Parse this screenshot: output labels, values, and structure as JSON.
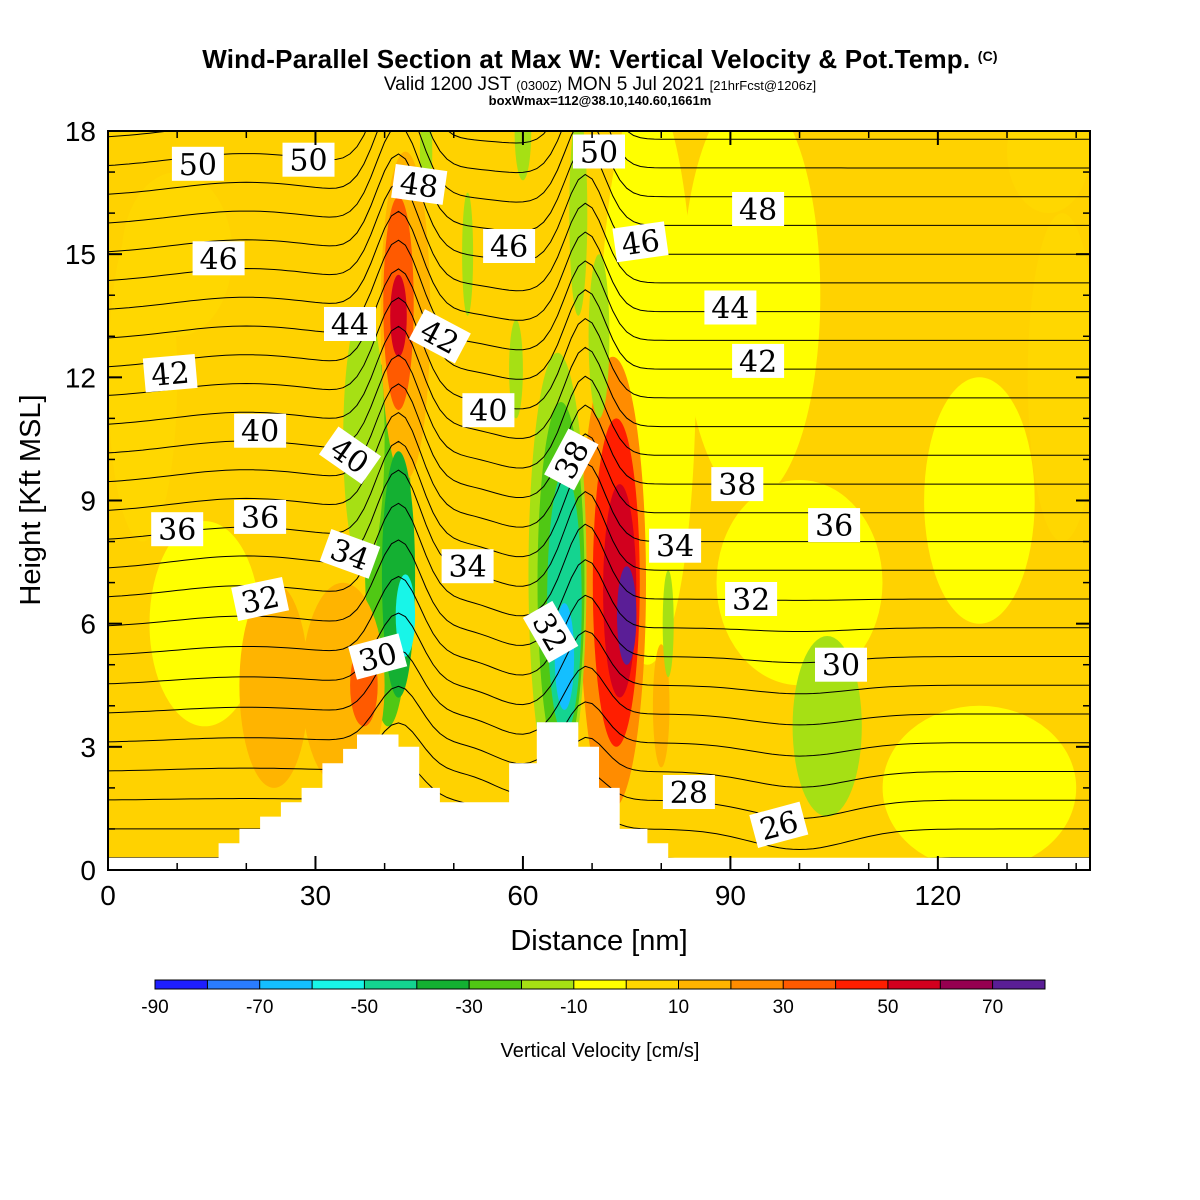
{
  "title": {
    "main": "Wind-Parallel Section at Max W: Vertical Velocity & Pot.Temp.",
    "copyright": "(C)",
    "valid_prefix": "Valid 1200 JST",
    "valid_utc": "(0300Z)",
    "valid_date": "MON 5 Jul 2021",
    "valid_fcst": "[21hrFcst@1206z]",
    "box_info": "boxWmax=112@38.10,140.60,1661m"
  },
  "chart_data": {
    "type": "heatmap",
    "xlabel": "Distance [nm]",
    "ylabel": "Height [Kft MSL]",
    "xlim": [
      0,
      142
    ],
    "ylim": [
      0,
      18
    ],
    "x_ticks": [
      0,
      30,
      60,
      90,
      120
    ],
    "y_ticks": [
      0,
      3,
      6,
      9,
      12,
      15,
      18
    ],
    "colorbar": {
      "label": "Vertical Velocity [cm/s]",
      "tick_labels": [
        "-90",
        "-70",
        "-50",
        "-30",
        "-10",
        "10",
        "30",
        "50",
        "70"
      ],
      "levels": [
        -90,
        -80,
        -70,
        -60,
        -50,
        -40,
        -30,
        -20,
        -10,
        0,
        10,
        20,
        30,
        40,
        50,
        60,
        70,
        80
      ],
      "colors": [
        "#1e1eff",
        "#2a7cff",
        "#14bfff",
        "#18f5e8",
        "#14d490",
        "#14b032",
        "#50c814",
        "#a6e014",
        "#ffff00",
        "#ffd700",
        "#ffb400",
        "#ff8c00",
        "#ff5a00",
        "#ff1e00",
        "#d2001e",
        "#960050",
        "#5a1e96"
      ]
    },
    "background_color": "#ffd200",
    "terrain_profile": [
      [
        0,
        0.3
      ],
      [
        16,
        0.3
      ],
      [
        16,
        0.65
      ],
      [
        19,
        0.65
      ],
      [
        19,
        1.0
      ],
      [
        22,
        1.0
      ],
      [
        22,
        1.3
      ],
      [
        25,
        1.3
      ],
      [
        25,
        1.65
      ],
      [
        28,
        1.65
      ],
      [
        28,
        2.0
      ],
      [
        31,
        2.0
      ],
      [
        31,
        2.6
      ],
      [
        34,
        2.6
      ],
      [
        34,
        2.95
      ],
      [
        36,
        2.95
      ],
      [
        36,
        3.3
      ],
      [
        42,
        3.3
      ],
      [
        42,
        3.0
      ],
      [
        45,
        3.0
      ],
      [
        45,
        2.0
      ],
      [
        48,
        2.0
      ],
      [
        48,
        1.65
      ],
      [
        58,
        1.65
      ],
      [
        58,
        2.6
      ],
      [
        62,
        2.6
      ],
      [
        62,
        3.6
      ],
      [
        68,
        3.6
      ],
      [
        68,
        3.0
      ],
      [
        71,
        3.0
      ],
      [
        71,
        2.0
      ],
      [
        74,
        2.0
      ],
      [
        74,
        1.0
      ],
      [
        78,
        1.0
      ],
      [
        78,
        0.65
      ],
      [
        81,
        0.65
      ],
      [
        81,
        0.3
      ],
      [
        142,
        0.3
      ]
    ],
    "velocity_features": [
      {
        "x": 75,
        "y": 6.2,
        "value": 78,
        "rx": 1.4,
        "ry": 1.2
      },
      {
        "x": 74,
        "y": 6.8,
        "value": 58,
        "rx": 2.4,
        "ry": 2.6
      },
      {
        "x": 73.5,
        "y": 7.0,
        "value": 42,
        "rx": 3.4,
        "ry": 4.0
      },
      {
        "x": 73,
        "y": 7.0,
        "value": 25,
        "rx": 4.8,
        "ry": 5.5
      },
      {
        "x": 66,
        "y": 5.2,
        "value": -64,
        "rx": 1.4,
        "ry": 1.3
      },
      {
        "x": 66,
        "y": 6.5,
        "value": -46,
        "rx": 2.5,
        "ry": 3.2
      },
      {
        "x": 65.5,
        "y": 7.0,
        "value": -30,
        "rx": 3.4,
        "ry": 4.4
      },
      {
        "x": 65,
        "y": 7.2,
        "value": -15,
        "rx": 4.2,
        "ry": 5.4
      },
      {
        "x": 43,
        "y": 6.2,
        "value": -56,
        "rx": 1.4,
        "ry": 1.0
      },
      {
        "x": 42,
        "y": 7.2,
        "value": -38,
        "rx": 2.4,
        "ry": 3.0
      },
      {
        "x": 40.5,
        "y": 8.0,
        "value": -24,
        "rx": 3.4,
        "ry": 4.5
      },
      {
        "x": 37,
        "y": 10.5,
        "value": -15,
        "rx": 3.0,
        "ry": 3.2
      },
      {
        "x": 42,
        "y": 13.5,
        "value": 52,
        "rx": 1.2,
        "ry": 1.0
      },
      {
        "x": 42,
        "y": 13.8,
        "value": 32,
        "rx": 2.2,
        "ry": 2.6
      },
      {
        "x": 43,
        "y": 13.5,
        "value": 14,
        "rx": 3.6,
        "ry": 4.0
      },
      {
        "x": 37,
        "y": 4.5,
        "value": 38,
        "rx": 2.0,
        "ry": 1.0
      },
      {
        "x": 34,
        "y": 4.5,
        "value": 15,
        "rx": 6.0,
        "ry": 2.5
      },
      {
        "x": 24,
        "y": 4.5,
        "value": 12,
        "rx": 5.0,
        "ry": 2.5
      },
      {
        "x": 104,
        "y": 3.5,
        "value": -16,
        "rx": 5.0,
        "ry": 2.2
      },
      {
        "x": 68,
        "y": 16.0,
        "value": -20,
        "rx": 1.3,
        "ry": 2.5
      },
      {
        "x": 71,
        "y": 13.0,
        "value": -15,
        "rx": 1.5,
        "ry": 2.0
      },
      {
        "x": 59,
        "y": 12.2,
        "value": -12,
        "rx": 1.0,
        "ry": 1.2
      },
      {
        "x": 52,
        "y": 15.0,
        "value": -15,
        "rx": 0.8,
        "ry": 1.5
      },
      {
        "x": 46,
        "y": 17.5,
        "value": -15,
        "rx": 0.9,
        "ry": 1.0
      },
      {
        "x": 60,
        "y": 18.0,
        "value": -15,
        "rx": 1.2,
        "ry": 1.2
      },
      {
        "x": 81,
        "y": 6.0,
        "value": -12,
        "rx": 0.8,
        "ry": 1.3
      },
      {
        "x": 80,
        "y": 4.0,
        "value": 15,
        "rx": 1.2,
        "ry": 1.5
      },
      {
        "x": 5,
        "y": 12.0,
        "value": 0,
        "rx": 5.0,
        "ry": 4.0
      },
      {
        "x": 93,
        "y": 14.0,
        "value": -2,
        "rx": 10.0,
        "ry": 5.0
      },
      {
        "x": 100,
        "y": 7.0,
        "value": -2,
        "rx": 12.0,
        "ry": 2.5
      },
      {
        "x": 78,
        "y": 12.0,
        "value": -3,
        "rx": 7.0,
        "ry": 7.0
      },
      {
        "x": 126,
        "y": 9.0,
        "value": -2,
        "rx": 8.0,
        "ry": 3.0
      },
      {
        "x": 126,
        "y": 2.0,
        "value": -2,
        "rx": 14.0,
        "ry": 2.0
      },
      {
        "x": 14,
        "y": 6.0,
        "value": -2,
        "rx": 8.0,
        "ry": 2.5
      },
      {
        "x": 10,
        "y": 15.0,
        "value": 3,
        "rx": 8.0,
        "ry": 2.0
      },
      {
        "x": 138,
        "y": 12.0,
        "value": 3,
        "rx": 5.0,
        "ry": 4.0
      },
      {
        "x": 136,
        "y": 17.5,
        "value": 3,
        "rx": 6.0,
        "ry": 1.5
      }
    ],
    "theta_contours": {
      "interval": 1,
      "labels": [
        {
          "text": "50",
          "x": 13,
          "y": 17.2,
          "rot": 0
        },
        {
          "text": "50",
          "x": 29,
          "y": 17.3,
          "rot": 0
        },
        {
          "text": "48",
          "x": 45,
          "y": 16.7,
          "rot": 8
        },
        {
          "text": "50",
          "x": 71,
          "y": 17.5,
          "rot": 0
        },
        {
          "text": "48",
          "x": 94,
          "y": 16.1,
          "rot": 0
        },
        {
          "text": "46",
          "x": 16,
          "y": 14.9,
          "rot": 0
        },
        {
          "text": "46",
          "x": 58,
          "y": 15.2,
          "rot": 0
        },
        {
          "text": "46",
          "x": 77,
          "y": 15.3,
          "rot": -8
        },
        {
          "text": "44",
          "x": 90,
          "y": 13.7,
          "rot": 0
        },
        {
          "text": "44",
          "x": 35,
          "y": 13.3,
          "rot": 0
        },
        {
          "text": "42",
          "x": 48,
          "y": 13.0,
          "rot": 28
        },
        {
          "text": "42",
          "x": 9,
          "y": 12.1,
          "rot": -5
        },
        {
          "text": "42",
          "x": 94,
          "y": 12.4,
          "rot": 0
        },
        {
          "text": "40",
          "x": 55,
          "y": 11.2,
          "rot": 0
        },
        {
          "text": "40",
          "x": 22,
          "y": 10.7,
          "rot": 0
        },
        {
          "text": "40",
          "x": 35,
          "y": 10.1,
          "rot": 35
        },
        {
          "text": "38",
          "x": 67,
          "y": 10.0,
          "rot": -62
        },
        {
          "text": "38",
          "x": 91,
          "y": 9.4,
          "rot": 0
        },
        {
          "text": "36",
          "x": 10,
          "y": 8.3,
          "rot": 0
        },
        {
          "text": "36",
          "x": 22,
          "y": 8.6,
          "rot": 0
        },
        {
          "text": "36",
          "x": 105,
          "y": 8.4,
          "rot": 0
        },
        {
          "text": "34",
          "x": 35,
          "y": 7.7,
          "rot": 20
        },
        {
          "text": "34",
          "x": 52,
          "y": 7.4,
          "rot": 0
        },
        {
          "text": "34",
          "x": 82,
          "y": 7.9,
          "rot": 0
        },
        {
          "text": "32",
          "x": 22,
          "y": 6.6,
          "rot": -12
        },
        {
          "text": "32",
          "x": 64,
          "y": 5.8,
          "rot": 60
        },
        {
          "text": "32",
          "x": 93,
          "y": 6.6,
          "rot": 0
        },
        {
          "text": "30",
          "x": 39,
          "y": 5.2,
          "rot": -15
        },
        {
          "text": "30",
          "x": 106,
          "y": 5.0,
          "rot": 0
        },
        {
          "text": "28",
          "x": 84,
          "y": 1.9,
          "rot": 0
        },
        {
          "text": "26",
          "x": 97,
          "y": 1.1,
          "rot": -15
        }
      ]
    }
  }
}
